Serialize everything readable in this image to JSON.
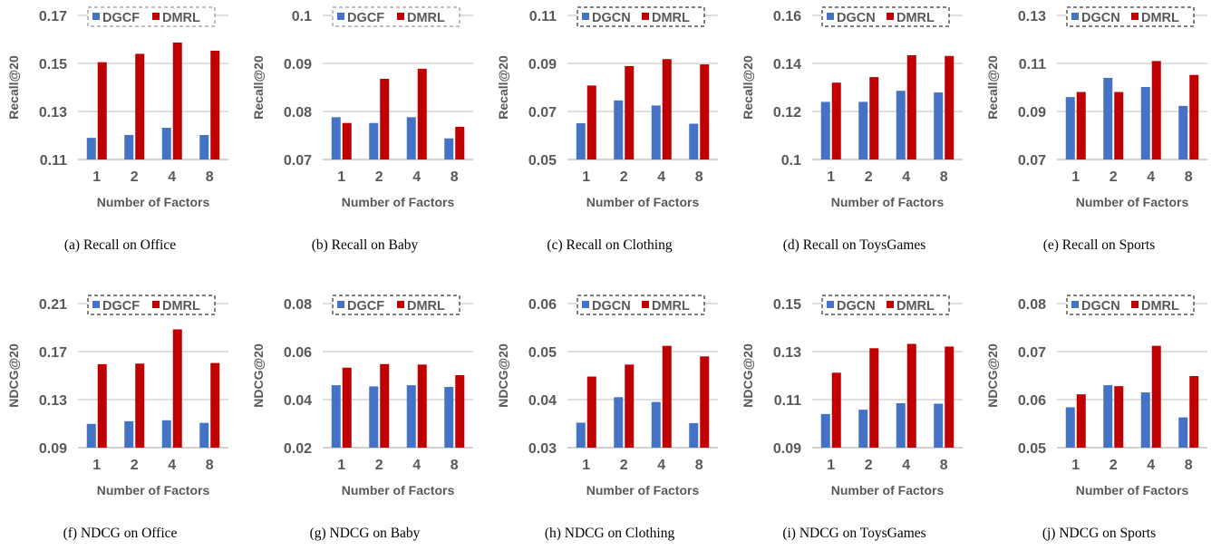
{
  "colors": {
    "series_1": "#4472C4",
    "series_2": "#C00000",
    "grid": "#BFBFBF",
    "text": "#595959"
  },
  "chart_data": [
    {
      "id": "a",
      "type": "bar",
      "caption": "(a) Recall on Office",
      "ylabel": "Recall@20",
      "xlabel": "Number of Factors",
      "categories": [
        "1",
        "2",
        "4",
        "8"
      ],
      "ylim": [
        0.11,
        0.17
      ],
      "yticks": [
        "0.11",
        "0.13",
        "0.15",
        "0.17"
      ],
      "series": [
        {
          "name": "DGCF",
          "values": [
            0.119,
            0.1202,
            0.1232,
            0.1202
          ]
        },
        {
          "name": "DMRL",
          "values": [
            0.1505,
            0.154,
            0.1587,
            0.1553
          ]
        }
      ]
    },
    {
      "id": "b",
      "type": "bar",
      "caption": "(b) Recall on Baby",
      "ylabel": "Recall@20",
      "xlabel": "Number of Factors",
      "categories": [
        "1",
        "2",
        "4",
        "8"
      ],
      "ylim": [
        0.07,
        0.1
      ],
      "yticks": [
        "0.07",
        "0.08",
        "0.09",
        "0.1"
      ],
      "series": [
        {
          "name": "DGCF",
          "values": [
            0.0788,
            0.0776,
            0.0788,
            0.0744
          ]
        },
        {
          "name": "DMRL",
          "values": [
            0.0776,
            0.0868,
            0.0889,
            0.0768
          ]
        }
      ]
    },
    {
      "id": "c",
      "type": "bar",
      "caption": "(c) Recall on Clothing",
      "ylabel": "Recall@20",
      "xlabel": "Number of Factors",
      "categories": [
        "1",
        "2",
        "4",
        "8"
      ],
      "ylim": [
        0.05,
        0.11
      ],
      "yticks": [
        "0.05",
        "0.07",
        "0.09",
        "0.11"
      ],
      "series": [
        {
          "name": "DGCN",
          "values": [
            0.0651,
            0.0746,
            0.0725,
            0.0649
          ]
        },
        {
          "name": "DMRL",
          "values": [
            0.0808,
            0.0889,
            0.0918,
            0.0896
          ]
        }
      ]
    },
    {
      "id": "d",
      "type": "bar",
      "caption": "(d) Recall on ToysGames",
      "ylabel": "Recall@20",
      "xlabel": "Number of Factors",
      "categories": [
        "1",
        "2",
        "4",
        "8"
      ],
      "ylim": [
        0.1,
        0.16
      ],
      "yticks": [
        "0.1",
        "0.12",
        "0.14",
        "0.16"
      ],
      "series": [
        {
          "name": "DGCN",
          "values": [
            0.124,
            0.124,
            0.1286,
            0.1279
          ]
        },
        {
          "name": "DMRL",
          "values": [
            0.132,
            0.1343,
            0.1434,
            0.1431
          ]
        }
      ]
    },
    {
      "id": "e",
      "type": "bar",
      "caption": "(e) Recall on Sports",
      "ylabel": "Recall@20",
      "xlabel": "Number of Factors",
      "categories": [
        "1",
        "2",
        "4",
        "8"
      ],
      "ylim": [
        0.07,
        0.13
      ],
      "yticks": [
        "0.07",
        "0.09",
        "0.11",
        "0.13"
      ],
      "series": [
        {
          "name": "DGCN",
          "values": [
            0.096,
            0.104,
            0.1002,
            0.0923
          ]
        },
        {
          "name": "DMRL",
          "values": [
            0.0981,
            0.0981,
            0.111,
            0.1052
          ]
        }
      ]
    },
    {
      "id": "f",
      "type": "bar",
      "caption": "(f) NDCG on Office",
      "ylabel": "NDCG@20",
      "xlabel": "Number of Factors",
      "categories": [
        "1",
        "2",
        "4",
        "8"
      ],
      "ylim": [
        0.09,
        0.21
      ],
      "yticks": [
        "0.09",
        "0.13",
        "0.17",
        "0.21"
      ],
      "series": [
        {
          "name": "DGCF",
          "values": [
            0.1098,
            0.112,
            0.1128,
            0.1106
          ]
        },
        {
          "name": "DMRL",
          "values": [
            0.1595,
            0.16,
            0.1885,
            0.1605
          ]
        }
      ]
    },
    {
      "id": "g",
      "type": "bar",
      "caption": "(g) NDCG on Baby",
      "ylabel": "NDCG@20",
      "xlabel": "Number of Factors",
      "categories": [
        "1",
        "2",
        "4",
        "8"
      ],
      "ylim": [
        0.02,
        0.08
      ],
      "yticks": [
        "0.02",
        "0.04",
        "0.06",
        "0.08"
      ],
      "series": [
        {
          "name": "DGCF",
          "values": [
            0.046,
            0.0455,
            0.046,
            0.0453
          ]
        },
        {
          "name": "DMRL",
          "values": [
            0.0533,
            0.0548,
            0.0546,
            0.0502
          ]
        }
      ]
    },
    {
      "id": "h",
      "type": "bar",
      "caption": "(h) NDCG on Clothing",
      "ylabel": "NDCG@20",
      "xlabel": "Number of Factors",
      "categories": [
        "1",
        "2",
        "4",
        "8"
      ],
      "ylim": [
        0.03,
        0.06
      ],
      "yticks": [
        "0.03",
        "0.04",
        "0.05",
        "0.06"
      ],
      "series": [
        {
          "name": "DGCN",
          "values": [
            0.0352,
            0.0405,
            0.0395,
            0.0351
          ]
        },
        {
          "name": "DMRL",
          "values": [
            0.0448,
            0.0473,
            0.0512,
            0.049
          ]
        }
      ]
    },
    {
      "id": "i",
      "type": "bar",
      "caption": "(i) NDCG on ToysGames",
      "ylabel": "NDCG@20",
      "xlabel": "Number of Factors",
      "categories": [
        "1",
        "2",
        "4",
        "8"
      ],
      "ylim": [
        0.09,
        0.15
      ],
      "yticks": [
        "0.09",
        "0.11",
        "0.13",
        "0.15"
      ],
      "series": [
        {
          "name": "DGCN",
          "values": [
            0.104,
            0.1058,
            0.1085,
            0.1083
          ]
        },
        {
          "name": "DMRL",
          "values": [
            0.1212,
            0.1314,
            0.1332,
            0.1321
          ]
        }
      ]
    },
    {
      "id": "j",
      "type": "bar",
      "caption": "(j) NDCG on Sports",
      "ylabel": "NDCG@20",
      "xlabel": "Number of Factors",
      "categories": [
        "1",
        "2",
        "4",
        "8"
      ],
      "ylim": [
        0.05,
        0.08
      ],
      "yticks": [
        "0.05",
        "0.06",
        "0.07",
        "0.08"
      ],
      "series": [
        {
          "name": "DGCN",
          "values": [
            0.0584,
            0.063,
            0.0615,
            0.0563
          ]
        },
        {
          "name": "DMRL",
          "values": [
            0.0611,
            0.0628,
            0.0712,
            0.0649
          ]
        }
      ]
    }
  ]
}
